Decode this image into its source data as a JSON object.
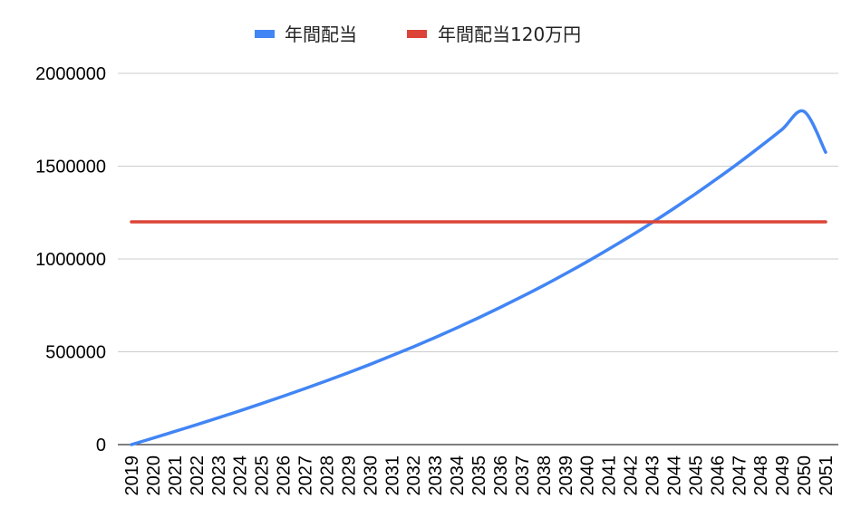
{
  "chart_data": {
    "type": "line",
    "title": "",
    "xlabel": "",
    "ylabel": "",
    "categories": [
      "2019",
      "2020",
      "2021",
      "2022",
      "2023",
      "2024",
      "2025",
      "2026",
      "2027",
      "2028",
      "2029",
      "2030",
      "2031",
      "2032",
      "2033",
      "2034",
      "2035",
      "2036",
      "2037",
      "2038",
      "2039",
      "2040",
      "2041",
      "2042",
      "2043",
      "2044",
      "2045",
      "2046",
      "2047",
      "2048",
      "2049",
      "2050",
      "2051"
    ],
    "ylim": [
      0,
      2000000
    ],
    "yticks": [
      0,
      500000,
      1000000,
      1500000,
      2000000
    ],
    "ytick_labels": [
      "0",
      "500000",
      "1000000",
      "1500000",
      "2000000"
    ],
    "grid": true,
    "legend_position": "top",
    "series": [
      {
        "name": "年間配当",
        "color": "#4285F4",
        "values": [
          0,
          35000,
          71000,
          107000,
          144000,
          182000,
          221000,
          261000,
          302000,
          344000,
          387000,
          432000,
          479000,
          527000,
          577000,
          629000,
          683000,
          739000,
          797000,
          857000,
          920000,
          985000,
          1053000,
          1123000,
          1196000,
          1272000,
          1351000,
          1433000,
          1518000,
          1607000,
          1699000,
          1795000,
          1575000
        ]
      },
      {
        "name": "年間配当120万円",
        "color": "#DB4437",
        "values": [
          1200000,
          1200000,
          1200000,
          1200000,
          1200000,
          1200000,
          1200000,
          1200000,
          1200000,
          1200000,
          1200000,
          1200000,
          1200000,
          1200000,
          1200000,
          1200000,
          1200000,
          1200000,
          1200000,
          1200000,
          1200000,
          1200000,
          1200000,
          1200000,
          1200000,
          1200000,
          1200000,
          1200000,
          1200000,
          1200000,
          1200000,
          1200000,
          1200000
        ]
      }
    ]
  }
}
